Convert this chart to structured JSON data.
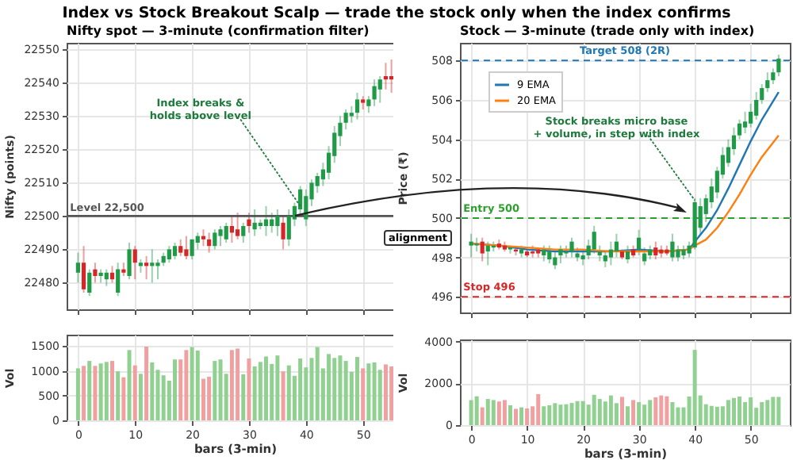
{
  "chart_data": [
    {
      "type": "candlestick",
      "title": "Index vs Stock Breakout Scalp  —  trade the stock only when the index confirms",
      "subtitle": "Nifty spot  —  3-minute  (confirmation filter)",
      "ylabel": "Nifty (points)",
      "tick_labels": "y",
      "grid": true,
      "x": [
        0,
        1,
        2,
        3,
        4,
        5,
        6,
        7,
        8,
        9,
        10,
        11,
        12,
        13,
        14,
        15,
        16,
        17,
        18,
        19,
        20,
        21,
        22,
        23,
        24,
        25,
        26,
        27,
        28,
        29,
        30,
        31,
        32,
        33,
        34,
        35,
        36,
        37,
        38,
        39,
        40,
        41,
        42,
        43,
        44,
        45,
        46,
        47,
        48,
        49,
        50,
        51,
        52,
        53,
        54,
        55
      ],
      "ohlc": [
        [
          22483,
          22489,
          22480,
          22486
        ],
        [
          22486,
          22491,
          22477,
          22478
        ],
        [
          22477,
          22484,
          22476,
          22483
        ],
        [
          22484,
          22486,
          22480,
          22482
        ],
        [
          22482,
          22484,
          22480,
          22483
        ],
        [
          22481,
          22484,
          22479,
          22483
        ],
        [
          22483,
          22485,
          22480,
          22481
        ],
        [
          22477,
          22486,
          22476,
          22484
        ],
        [
          22484,
          22486,
          22482,
          22483
        ],
        [
          22482,
          22492,
          22481,
          22490
        ],
        [
          22490,
          22491,
          22481,
          22486
        ],
        [
          22485,
          22487,
          22483,
          22486
        ],
        [
          22486,
          22488,
          22481,
          22485
        ],
        [
          22485,
          22490,
          22480,
          22486
        ],
        [
          22485,
          22487,
          22481,
          22486
        ],
        [
          22486,
          22489,
          22485,
          22488
        ],
        [
          22487,
          22491,
          22486,
          22490
        ],
        [
          22488,
          22492,
          22487,
          22491
        ],
        [
          22491,
          22493,
          22488,
          22489
        ],
        [
          22490,
          22494,
          22487,
          22488
        ],
        [
          22488,
          22493,
          22487,
          22493
        ],
        [
          22492,
          22495,
          22490,
          22494
        ],
        [
          22494,
          22496,
          22491,
          22493
        ],
        [
          22493,
          22495,
          22489,
          22491
        ],
        [
          22491,
          22496,
          22490,
          22495
        ],
        [
          22494,
          22497,
          22491,
          22496
        ],
        [
          22493,
          22498,
          22492,
          22497
        ],
        [
          22497,
          22500,
          22492,
          22495
        ],
        [
          22496,
          22501,
          22493,
          22494
        ],
        [
          22494,
          22498,
          22492,
          22497
        ],
        [
          22499,
          22501,
          22495,
          22497
        ],
        [
          22496,
          22502,
          22494,
          22498
        ],
        [
          22497,
          22499,
          22496,
          22498
        ],
        [
          22497,
          22503,
          22494,
          22499
        ],
        [
          22497,
          22501,
          22495,
          22499
        ],
        [
          22497,
          22502,
          22494,
          22500
        ],
        [
          22498,
          22500,
          22490,
          22493
        ],
        [
          22493,
          22502,
          22491,
          22500
        ],
        [
          22499,
          22504,
          22497,
          22503
        ],
        [
          22502,
          22509,
          22500,
          22508
        ],
        [
          22499,
          22508,
          22497,
          22506
        ],
        [
          22505,
          22511,
          22503,
          22510
        ],
        [
          22509,
          22513,
          22507,
          22512
        ],
        [
          22511,
          22516,
          22509,
          22514
        ],
        [
          22513,
          22521,
          22511,
          22519
        ],
        [
          22518,
          22527,
          22516,
          22525
        ],
        [
          22524,
          22530,
          22521,
          22528
        ],
        [
          22528,
          22532,
          22526,
          22531
        ],
        [
          22530,
          22533,
          22528,
          22531
        ],
        [
          22531,
          22537,
          22529,
          22535
        ],
        [
          22535,
          22536,
          22532,
          22534
        ],
        [
          22533,
          22536,
          22531,
          22535
        ],
        [
          22535,
          22541,
          22533,
          22539
        ],
        [
          22538,
          22542,
          22534,
          22541
        ],
        [
          22542,
          22546,
          22538,
          22541
        ],
        [
          22542,
          22547,
          22537,
          22541
        ]
      ],
      "xlim": [
        -2,
        57
      ],
      "xticks": [
        0,
        10,
        20,
        30,
        40,
        50
      ],
      "ylim": [
        22472,
        22552
      ],
      "yticks": [
        22480,
        22490,
        22500,
        22510,
        22520,
        22530,
        22540,
        22550
      ],
      "ref_lines": [
        {
          "axis": "y",
          "value": 22500,
          "label": "Level  22,500",
          "color": "#555555",
          "line_style": "solid"
        }
      ],
      "annotations": [
        {
          "text": "Index breaks &\nholds above level",
          "x": 39,
          "y": 22503
        },
        "alignment"
      ]
    },
    {
      "type": "bar",
      "xlabel": "bars (3-min)",
      "ylabel": "Vol",
      "grid": true,
      "x": [
        0,
        1,
        2,
        3,
        4,
        5,
        6,
        7,
        8,
        9,
        10,
        11,
        12,
        13,
        14,
        15,
        16,
        17,
        18,
        19,
        20,
        21,
        22,
        23,
        24,
        25,
        26,
        27,
        28,
        29,
        30,
        31,
        32,
        33,
        34,
        35,
        36,
        37,
        38,
        39,
        40,
        41,
        42,
        43,
        44,
        45,
        46,
        47,
        48,
        49,
        50,
        51,
        52,
        53,
        54,
        55
      ],
      "values": [
        1050,
        1100,
        1200,
        1100,
        1150,
        1180,
        1200,
        990,
        870,
        1420,
        1110,
        940,
        1490,
        1170,
        1020,
        910,
        800,
        1230,
        1230,
        1420,
        1480,
        1410,
        840,
        880,
        1200,
        1230,
        940,
        1420,
        1450,
        930,
        1250,
        1090,
        1180,
        1290,
        1140,
        1310,
        990,
        1110,
        900,
        1250,
        1070,
        1260,
        1480,
        1050,
        1340,
        1260,
        1310,
        1200,
        980,
        1280,
        1050,
        1150,
        1170,
        1020,
        1130,
        1090
      ],
      "colors": [
        "#90d090",
        "#f0a0a0",
        "#90d090",
        "#f0a0a0",
        "#90d090",
        "#90d090",
        "#f0a0a0",
        "#90d090",
        "#f0a0a0",
        "#90d090",
        "#f0a0a0",
        "#90d090",
        "#f0a0a0",
        "#90d090",
        "#90d090",
        "#90d090",
        "#90d090",
        "#90d090",
        "#f0a0a0",
        "#f0a0a0",
        "#90d090",
        "#90d090",
        "#f0a0a0",
        "#f0a0a0",
        "#90d090",
        "#90d090",
        "#90d090",
        "#f0a0a0",
        "#f0a0a0",
        "#90d090",
        "#f0a0a0",
        "#90d090",
        "#90d090",
        "#90d090",
        "#90d090",
        "#90d090",
        "#f0a0a0",
        "#90d090",
        "#90d090",
        "#90d090",
        "#90d090",
        "#90d090",
        "#90d090",
        "#90d090",
        "#90d090",
        "#90d090",
        "#90d090",
        "#90d090",
        "#90d090",
        "#90d090",
        "#f0a0a0",
        "#90d090",
        "#90d090",
        "#90d090",
        "#f0a0a0",
        "#f0a0a0"
      ],
      "xlim": [
        -2,
        57
      ],
      "xticks": [
        0,
        10,
        20,
        30,
        40,
        50
      ],
      "ylim": [
        0,
        1730
      ],
      "yticks": [
        0,
        500,
        1000,
        1500
      ]
    },
    {
      "type": "candlestick",
      "title": "Stock  —  3-minute  (trade only with index)",
      "ylabel": "Price (₹)",
      "tick_labels": "y",
      "grid": true,
      "legend": "top left",
      "x": [
        0,
        1,
        2,
        3,
        4,
        5,
        6,
        7,
        8,
        9,
        10,
        11,
        12,
        13,
        14,
        15,
        16,
        17,
        18,
        19,
        20,
        21,
        22,
        23,
        24,
        25,
        26,
        27,
        28,
        29,
        30,
        31,
        32,
        33,
        34,
        35,
        36,
        37,
        38,
        39,
        40,
        41,
        42,
        43,
        44,
        45,
        46,
        47,
        48,
        49,
        50,
        51,
        52,
        53,
        54,
        55
      ],
      "ohlc": [
        [
          498.6,
          499.2,
          498.0,
          498.8
        ],
        [
          498.6,
          499.0,
          498.3,
          498.7
        ],
        [
          498.8,
          499.0,
          497.8,
          498.2
        ],
        [
          498.3,
          498.8,
          497.6,
          498.6
        ],
        [
          498.5,
          498.8,
          498.3,
          498.6
        ],
        [
          498.7,
          498.9,
          498.4,
          498.5
        ],
        [
          498.6,
          498.8,
          498.3,
          498.4
        ],
        [
          498.4,
          498.6,
          498.2,
          498.5
        ],
        [
          498.4,
          498.5,
          498.1,
          498.3
        ],
        [
          498.2,
          498.6,
          498.0,
          498.4
        ],
        [
          498.3,
          498.5,
          498.0,
          498.1
        ],
        [
          498.3,
          498.6,
          498.0,
          498.2
        ],
        [
          498.4,
          498.5,
          498.0,
          498.2
        ],
        [
          498.1,
          498.6,
          497.8,
          498.4
        ],
        [
          497.9,
          498.6,
          497.7,
          498.3
        ],
        [
          497.6,
          498.3,
          497.4,
          498.0
        ],
        [
          498.1,
          498.6,
          497.7,
          498.4
        ],
        [
          498.2,
          498.6,
          498.0,
          498.3
        ],
        [
          498.3,
          499.0,
          498.0,
          498.8
        ],
        [
          498.0,
          498.5,
          497.8,
          498.2
        ],
        [
          497.9,
          498.4,
          497.6,
          498.1
        ],
        [
          498.1,
          498.9,
          497.9,
          498.6
        ],
        [
          498.4,
          499.6,
          498.2,
          499.3
        ],
        [
          498.1,
          498.6,
          497.8,
          498.3
        ],
        [
          497.8,
          498.3,
          497.5,
          498.1
        ],
        [
          498.0,
          498.8,
          497.6,
          498.4
        ],
        [
          498.3,
          499.2,
          498.0,
          498.8
        ],
        [
          498.3,
          498.4,
          497.9,
          498.0
        ],
        [
          497.9,
          498.6,
          497.7,
          498.3
        ],
        [
          498.4,
          498.6,
          498.0,
          498.1
        ],
        [
          498.4,
          499.4,
          498.1,
          499.0
        ],
        [
          497.8,
          498.5,
          497.6,
          498.2
        ],
        [
          498.1,
          498.6,
          497.9,
          498.4
        ],
        [
          498.5,
          498.8,
          497.9,
          498.1
        ],
        [
          498.4,
          498.6,
          498.0,
          498.2
        ],
        [
          498.4,
          498.6,
          498.1,
          498.2
        ],
        [
          498.0,
          499.2,
          497.8,
          498.8
        ],
        [
          498.0,
          498.6,
          497.8,
          498.4
        ],
        [
          498.1,
          498.6,
          497.9,
          498.4
        ],
        [
          498.2,
          498.8,
          498.0,
          498.6
        ],
        [
          498.5,
          501.0,
          498.4,
          500.8
        ],
        [
          499.5,
          501.0,
          499.1,
          500.6
        ],
        [
          500.2,
          501.2,
          499.8,
          501.0
        ],
        [
          500.8,
          502.0,
          500.5,
          501.6
        ],
        [
          501.3,
          502.6,
          501.0,
          502.4
        ],
        [
          502.2,
          503.6,
          502.0,
          503.2
        ],
        [
          502.8,
          504.0,
          502.6,
          503.6
        ],
        [
          503.5,
          504.6,
          503.2,
          504.2
        ],
        [
          504.2,
          505.0,
          504.0,
          504.8
        ],
        [
          504.6,
          505.4,
          504.3,
          504.9
        ],
        [
          504.8,
          505.8,
          504.6,
          505.4
        ],
        [
          505.2,
          506.4,
          505.0,
          506.0
        ],
        [
          506.0,
          506.8,
          505.8,
          506.6
        ],
        [
          506.6,
          507.4,
          506.4,
          507.0
        ],
        [
          507.0,
          507.6,
          506.8,
          507.4
        ],
        [
          507.4,
          508.3,
          507.2,
          508.1
        ]
      ],
      "series": [
        {
          "name": "9 EMA",
          "type": "line",
          "color": "#1f77b4",
          "x": [
            0,
            5,
            10,
            15,
            20,
            25,
            30,
            35,
            39,
            40,
            42,
            44,
            46,
            48,
            50,
            52,
            55
          ],
          "values": [
            498.7,
            498.6,
            498.4,
            498.3,
            498.3,
            498.3,
            498.4,
            498.3,
            498.4,
            498.8,
            499.5,
            500.4,
            501.5,
            502.7,
            503.9,
            505.0,
            506.4
          ]
        },
        {
          "name": "20 EMA",
          "type": "line",
          "color": "#ff7f0e",
          "x": [
            0,
            5,
            10,
            15,
            20,
            25,
            30,
            35,
            39,
            40,
            42,
            44,
            46,
            48,
            50,
            52,
            55
          ],
          "values": [
            498.7,
            498.6,
            498.5,
            498.4,
            498.4,
            498.3,
            498.3,
            498.3,
            498.4,
            498.6,
            498.9,
            499.5,
            500.3,
            501.2,
            502.2,
            503.1,
            504.2
          ]
        }
      ],
      "xlim": [
        -2,
        57
      ],
      "xticks": [
        0,
        10,
        20,
        30,
        40,
        50
      ],
      "ylim": [
        495.2,
        508.9
      ],
      "yticks": [
        496,
        498,
        500,
        502,
        504,
        506,
        508
      ],
      "ref_lines": [
        {
          "axis": "y",
          "value": 508,
          "label": "Target  508   (2R)",
          "color": "#1f77b4",
          "line_style": "dashed"
        },
        {
          "axis": "y",
          "value": 500,
          "label": "Entry  500",
          "color": "#2ca02c",
          "line_style": "dashed"
        },
        {
          "axis": "y",
          "value": 496,
          "label": "Stop  496",
          "color": "#d62728",
          "line_style": "dashed"
        }
      ],
      "annotations": [
        {
          "text": "Stock breaks micro base\n+ volume, in step with index",
          "x": 40,
          "y": 500.9
        }
      ]
    },
    {
      "type": "bar",
      "xlabel": "bars (3-min)",
      "ylabel": "Vol",
      "grid": true,
      "x": [
        0,
        1,
        2,
        3,
        4,
        5,
        6,
        7,
        8,
        9,
        10,
        11,
        12,
        13,
        14,
        15,
        16,
        17,
        18,
        19,
        20,
        21,
        22,
        23,
        24,
        25,
        26,
        27,
        28,
        29,
        30,
        31,
        32,
        33,
        34,
        35,
        36,
        37,
        38,
        39,
        40,
        41,
        42,
        43,
        44,
        45,
        46,
        47,
        48,
        49,
        50,
        51,
        52,
        53,
        54,
        55
      ],
      "values": [
        1200,
        1380,
        850,
        1250,
        1200,
        1130,
        1200,
        950,
        780,
        850,
        800,
        900,
        1480,
        900,
        950,
        1050,
        980,
        1000,
        1060,
        1150,
        1150,
        980,
        1450,
        1250,
        1130,
        1420,
        1050,
        1350,
        900,
        1200,
        1100,
        980,
        1200,
        1330,
        1420,
        1380,
        1100,
        850,
        850,
        1370,
        3600,
        1420,
        1000,
        920,
        880,
        900,
        1200,
        1300,
        1370,
        1100,
        1330,
        830,
        1100,
        1200,
        1350,
        1350
      ],
      "colors": [
        "#90d090",
        "#90d090",
        "#f0a0a0",
        "#90d090",
        "#90d090",
        "#f0a0a0",
        "#f0a0a0",
        "#90d090",
        "#f0a0a0",
        "#90d090",
        "#f0a0a0",
        "#f0a0a0",
        "#f0a0a0",
        "#90d090",
        "#90d090",
        "#90d090",
        "#90d090",
        "#90d090",
        "#90d090",
        "#90d090",
        "#90d090",
        "#90d090",
        "#90d090",
        "#90d090",
        "#90d090",
        "#90d090",
        "#90d090",
        "#f0a0a0",
        "#90d090",
        "#f0a0a0",
        "#90d090",
        "#90d090",
        "#90d090",
        "#f0a0a0",
        "#f0a0a0",
        "#f0a0a0",
        "#90d090",
        "#90d090",
        "#90d090",
        "#90d090",
        "#90d090",
        "#90d090",
        "#90d090",
        "#90d090",
        "#90d090",
        "#90d090",
        "#90d090",
        "#90d090",
        "#90d090",
        "#90d090",
        "#90d090",
        "#90d090",
        "#90d090",
        "#90d090",
        "#90d090",
        "#90d090"
      ],
      "xlim": [
        -2,
        57
      ],
      "xticks": [
        0,
        10,
        20,
        30,
        40,
        50
      ],
      "ylim": [
        0,
        4100
      ],
      "yticks": [
        0,
        2000,
        4000
      ]
    }
  ]
}
